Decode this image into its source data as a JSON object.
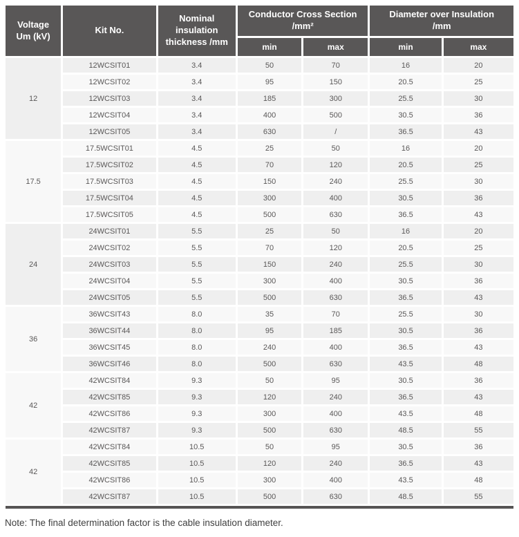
{
  "colors": {
    "header_bg": "#595757",
    "header_text": "#ffffff",
    "row_odd_bg": "#efefef",
    "row_even_bg": "#f8f8f8",
    "voltage_cell_bg": "#ededed",
    "body_text": "#595757",
    "bottom_bar": "#565454"
  },
  "table": {
    "header": {
      "voltage_line1": "Voltage",
      "voltage_line2": "Um (kV)",
      "kit_no": "Kit No.",
      "nominal_insulation": "Nominal insulation thickness /mm",
      "conductor_line1": "Conductor Cross Section",
      "conductor_line2": "/mm²",
      "diameter_line1": "Diameter over Insulation",
      "diameter_line2": "/mm",
      "min": "min",
      "max": "max"
    },
    "groups": [
      {
        "voltage": "12",
        "rows": [
          {
            "kit": "12WCSIT01",
            "thickness": "3.4",
            "ccs_min": "50",
            "ccs_max": "70",
            "dia_min": "16",
            "dia_max": "20"
          },
          {
            "kit": "12WCSIT02",
            "thickness": "3.4",
            "ccs_min": "95",
            "ccs_max": "150",
            "dia_min": "20.5",
            "dia_max": "25"
          },
          {
            "kit": "12WCSIT03",
            "thickness": "3.4",
            "ccs_min": "185",
            "ccs_max": "300",
            "dia_min": "25.5",
            "dia_max": "30"
          },
          {
            "kit": "12WCSIT04",
            "thickness": "3.4",
            "ccs_min": "400",
            "ccs_max": "500",
            "dia_min": "30.5",
            "dia_max": "36"
          },
          {
            "kit": "12WCSIT05",
            "thickness": "3.4",
            "ccs_min": "630",
            "ccs_max": "/",
            "dia_min": "36.5",
            "dia_max": "43"
          }
        ]
      },
      {
        "voltage": "17.5",
        "rows": [
          {
            "kit": "17.5WCSIT01",
            "thickness": "4.5",
            "ccs_min": "25",
            "ccs_max": "50",
            "dia_min": "16",
            "dia_max": "20"
          },
          {
            "kit": "17.5WCSIT02",
            "thickness": "4.5",
            "ccs_min": "70",
            "ccs_max": "120",
            "dia_min": "20.5",
            "dia_max": "25"
          },
          {
            "kit": "17.5WCSIT03",
            "thickness": "4.5",
            "ccs_min": "150",
            "ccs_max": "240",
            "dia_min": "25.5",
            "dia_max": "30"
          },
          {
            "kit": "17.5WCSIT04",
            "thickness": "4.5",
            "ccs_min": "300",
            "ccs_max": "400",
            "dia_min": "30.5",
            "dia_max": "36"
          },
          {
            "kit": "17.5WCSIT05",
            "thickness": "4.5",
            "ccs_min": "500",
            "ccs_max": "630",
            "dia_min": "36.5",
            "dia_max": "43"
          }
        ]
      },
      {
        "voltage": "24",
        "rows": [
          {
            "kit": "24WCSIT01",
            "thickness": "5.5",
            "ccs_min": "25",
            "ccs_max": "50",
            "dia_min": "16",
            "dia_max": "20"
          },
          {
            "kit": "24WCSIT02",
            "thickness": "5.5",
            "ccs_min": "70",
            "ccs_max": "120",
            "dia_min": "20.5",
            "dia_max": "25"
          },
          {
            "kit": "24WCSIT03",
            "thickness": "5.5",
            "ccs_min": "150",
            "ccs_max": "240",
            "dia_min": "25.5",
            "dia_max": "30"
          },
          {
            "kit": "24WCSIT04",
            "thickness": "5.5",
            "ccs_min": "300",
            "ccs_max": "400",
            "dia_min": "30.5",
            "dia_max": "36"
          },
          {
            "kit": "24WCSIT05",
            "thickness": "5.5",
            "ccs_min": "500",
            "ccs_max": "630",
            "dia_min": "36.5",
            "dia_max": "43"
          }
        ]
      },
      {
        "voltage": "36",
        "rows": [
          {
            "kit": "36WCSIT43",
            "thickness": "8.0",
            "ccs_min": "35",
            "ccs_max": "70",
            "dia_min": "25.5",
            "dia_max": "30"
          },
          {
            "kit": "36WCSIT44",
            "thickness": "8.0",
            "ccs_min": "95",
            "ccs_max": "185",
            "dia_min": "30.5",
            "dia_max": "36"
          },
          {
            "kit": "36WCSIT45",
            "thickness": "8.0",
            "ccs_min": "240",
            "ccs_max": "400",
            "dia_min": "36.5",
            "dia_max": "43"
          },
          {
            "kit": "36WCSIT46",
            "thickness": "8.0",
            "ccs_min": "500",
            "ccs_max": "630",
            "dia_min": "43.5",
            "dia_max": "48"
          }
        ]
      },
      {
        "voltage": "42",
        "rows": [
          {
            "kit": "42WCSIT84",
            "thickness": "9.3",
            "ccs_min": "50",
            "ccs_max": "95",
            "dia_min": "30.5",
            "dia_max": "36"
          },
          {
            "kit": "42WCSIT85",
            "thickness": "9.3",
            "ccs_min": "120",
            "ccs_max": "240",
            "dia_min": "36.5",
            "dia_max": "43"
          },
          {
            "kit": "42WCSIT86",
            "thickness": "9.3",
            "ccs_min": "300",
            "ccs_max": "400",
            "dia_min": "43.5",
            "dia_max": "48"
          },
          {
            "kit": "42WCSIT87",
            "thickness": "9.3",
            "ccs_min": "500",
            "ccs_max": "630",
            "dia_min": "48.5",
            "dia_max": "55"
          }
        ]
      },
      {
        "voltage": "42",
        "rows": [
          {
            "kit": "42WCSIT84",
            "thickness": "10.5",
            "ccs_min": "50",
            "ccs_max": "95",
            "dia_min": "30.5",
            "dia_max": "36"
          },
          {
            "kit": "42WCSIT85",
            "thickness": "10.5",
            "ccs_min": "120",
            "ccs_max": "240",
            "dia_min": "36.5",
            "dia_max": "43"
          },
          {
            "kit": "42WCSIT86",
            "thickness": "10.5",
            "ccs_min": "300",
            "ccs_max": "400",
            "dia_min": "43.5",
            "dia_max": "48"
          },
          {
            "kit": "42WCSIT87",
            "thickness": "10.5",
            "ccs_min": "500",
            "ccs_max": "630",
            "dia_min": "48.5",
            "dia_max": "55"
          }
        ]
      }
    ]
  },
  "note": "Note: The final determination factor is the cable insulation diameter."
}
